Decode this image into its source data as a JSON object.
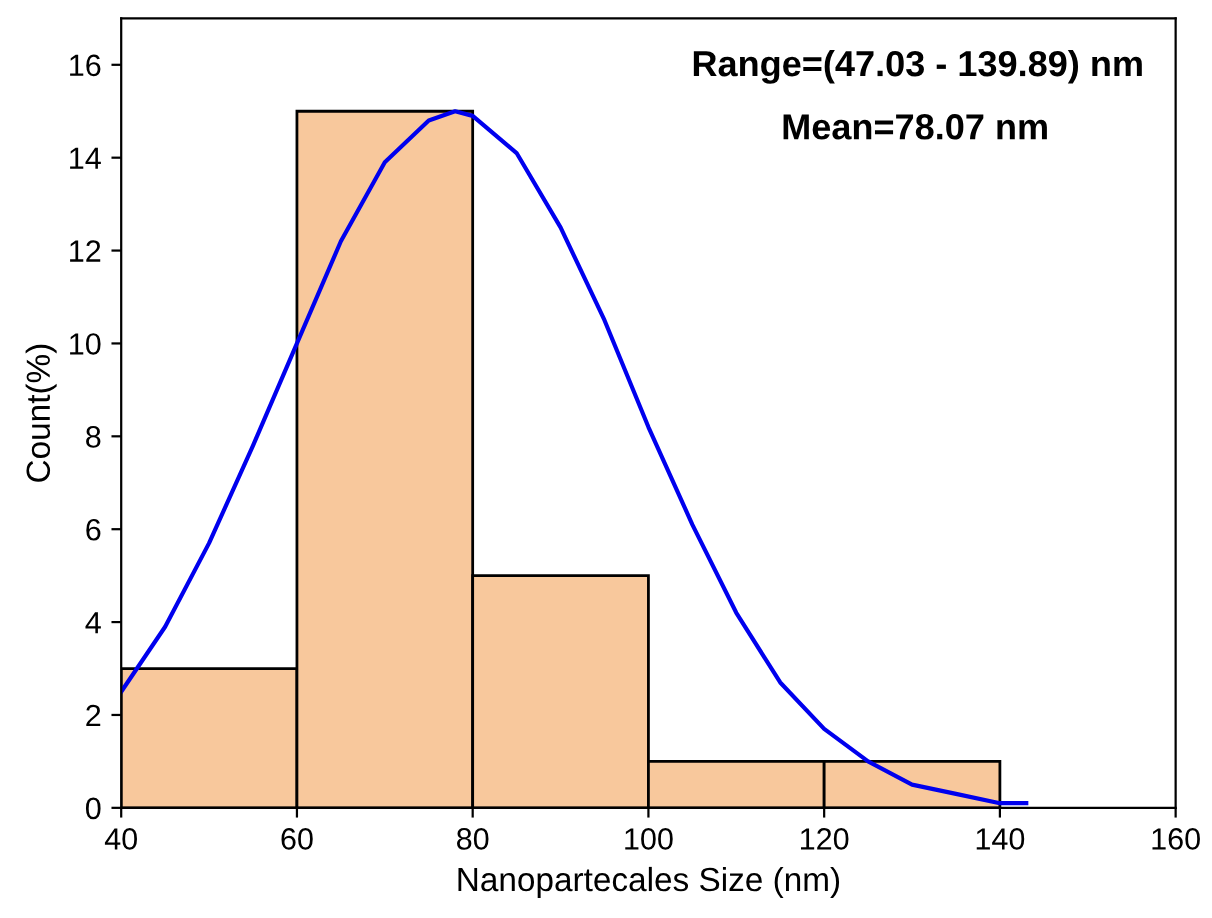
{
  "chart_data": {
    "type": "histogram",
    "xlabel": "Nanopartecales Size (nm)",
    "ylabel": "Count(%)",
    "bins": [
      40,
      60,
      80,
      100,
      120,
      140
    ],
    "values": [
      3,
      15,
      5,
      1,
      1
    ],
    "color": "#f8c89c",
    "series": [
      {
        "type": "line",
        "color": "#0000ee",
        "x": [
          40,
          45,
          50,
          55,
          60,
          65,
          70,
          75,
          78,
          80,
          85,
          90,
          95,
          100,
          105,
          110,
          115,
          120,
          125,
          130,
          135,
          140,
          143
        ],
        "values": [
          2.5,
          3.9,
          5.7,
          7.8,
          10.0,
          12.2,
          13.9,
          14.8,
          15.0,
          14.9,
          14.1,
          12.5,
          10.5,
          8.2,
          6.1,
          4.2,
          2.7,
          1.7,
          1.0,
          0.5,
          0.3,
          0.1,
          0.1
        ]
      }
    ],
    "annotations": [
      "Range=(47.03 - 139.89) nm",
      "Mean=78.07 nm"
    ],
    "xlim": [
      40,
      160
    ],
    "xticks": [
      40,
      60,
      80,
      100,
      120,
      140,
      160
    ],
    "ylim": [
      0,
      17
    ],
    "yticks": [
      0,
      2,
      4,
      6,
      8,
      10,
      12,
      14,
      16
    ],
    "grid": false
  }
}
